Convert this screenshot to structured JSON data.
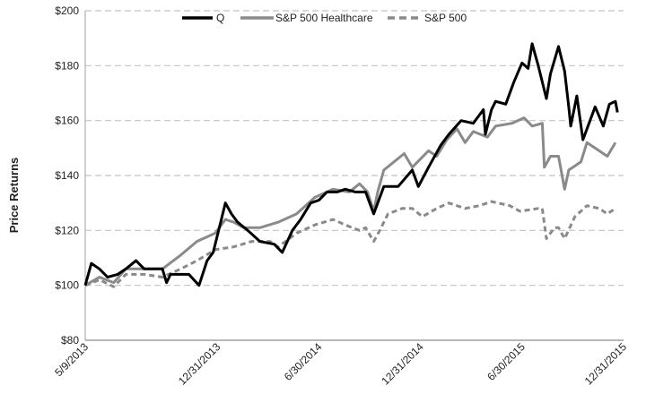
{
  "chart_data": {
    "type": "line",
    "title": "",
    "xlabel": "",
    "ylabel": "Price Returns",
    "ylim": [
      80,
      200
    ],
    "xlim": [
      2013.35,
      2016.0
    ],
    "grid": true,
    "legend_position": "top-center",
    "yticks": [
      80,
      100,
      120,
      140,
      160,
      180,
      200
    ],
    "ytick_labels": [
      "$80",
      "$100",
      "$120",
      "$140",
      "$160",
      "$180",
      "$200"
    ],
    "xticks": [
      2013.35,
      2014.0,
      2014.5,
      2015.0,
      2015.5,
      2016.0
    ],
    "xtick_labels": [
      "5/9/2013",
      "12/31/2013",
      "6/30/2014",
      "12/31/2014",
      "6/30/2015",
      "12/31/2015"
    ],
    "x_units": "decimal year",
    "series": [
      {
        "name": "Q",
        "color": "#000000",
        "style": "solid",
        "points": [
          [
            2013.35,
            100
          ],
          [
            2013.38,
            108
          ],
          [
            2013.42,
            106
          ],
          [
            2013.46,
            103
          ],
          [
            2013.51,
            104
          ],
          [
            2013.55,
            106
          ],
          [
            2013.6,
            109
          ],
          [
            2013.64,
            106
          ],
          [
            2013.68,
            106
          ],
          [
            2013.73,
            106
          ],
          [
            2013.75,
            101
          ],
          [
            2013.77,
            104
          ],
          [
            2013.82,
            104
          ],
          [
            2013.86,
            104
          ],
          [
            2013.91,
            100
          ],
          [
            2013.95,
            109
          ],
          [
            2013.98,
            112
          ],
          [
            2014.02,
            124
          ],
          [
            2014.04,
            130
          ],
          [
            2014.07,
            126
          ],
          [
            2014.1,
            123
          ],
          [
            2014.15,
            120
          ],
          [
            2014.21,
            116
          ],
          [
            2014.28,
            115
          ],
          [
            2014.32,
            112
          ],
          [
            2014.37,
            120
          ],
          [
            2014.41,
            124
          ],
          [
            2014.46,
            130
          ],
          [
            2014.5,
            131
          ],
          [
            2014.54,
            134
          ],
          [
            2014.59,
            134
          ],
          [
            2014.63,
            135
          ],
          [
            2014.68,
            134
          ],
          [
            2014.73,
            134
          ],
          [
            2014.77,
            126
          ],
          [
            2014.82,
            136
          ],
          [
            2014.89,
            136
          ],
          [
            2014.96,
            142
          ],
          [
            2014.99,
            136
          ],
          [
            2015.04,
            143
          ],
          [
            2015.1,
            151
          ],
          [
            2015.14,
            155
          ],
          [
            2015.2,
            160
          ],
          [
            2015.26,
            159
          ],
          [
            2015.31,
            164
          ],
          [
            2015.32,
            155
          ],
          [
            2015.35,
            164
          ],
          [
            2015.37,
            167
          ],
          [
            2015.42,
            166
          ],
          [
            2015.46,
            174
          ],
          [
            2015.5,
            181
          ],
          [
            2015.53,
            179
          ],
          [
            2015.55,
            188
          ],
          [
            2015.58,
            180
          ],
          [
            2015.62,
            168
          ],
          [
            2015.64,
            177
          ],
          [
            2015.68,
            187
          ],
          [
            2015.71,
            178
          ],
          [
            2015.73,
            165
          ],
          [
            2015.74,
            158
          ],
          [
            2015.77,
            169
          ],
          [
            2015.8,
            153
          ],
          [
            2015.83,
            159
          ],
          [
            2015.86,
            165
          ],
          [
            2015.9,
            158
          ],
          [
            2015.93,
            166
          ],
          [
            2015.96,
            167
          ],
          [
            2015.97,
            163
          ]
        ]
      },
      {
        "name": "S&P 500 Healthcare",
        "color": "#8a8a8a",
        "style": "solid",
        "points": [
          [
            2013.35,
            100
          ],
          [
            2013.42,
            103
          ],
          [
            2013.49,
            101
          ],
          [
            2013.55,
            106
          ],
          [
            2013.64,
            106
          ],
          [
            2013.73,
            106
          ],
          [
            2013.82,
            111
          ],
          [
            2013.9,
            116
          ],
          [
            2013.99,
            119
          ],
          [
            2014.04,
            124
          ],
          [
            2014.08,
            123
          ],
          [
            2014.13,
            121
          ],
          [
            2014.21,
            121
          ],
          [
            2014.3,
            123
          ],
          [
            2014.39,
            126
          ],
          [
            2014.48,
            132
          ],
          [
            2014.57,
            135
          ],
          [
            2014.65,
            134
          ],
          [
            2014.7,
            137
          ],
          [
            2014.74,
            134
          ],
          [
            2014.77,
            127
          ],
          [
            2014.79,
            134
          ],
          [
            2014.82,
            142
          ],
          [
            2014.92,
            148
          ],
          [
            2014.96,
            143
          ],
          [
            2015.04,
            149
          ],
          [
            2015.08,
            147
          ],
          [
            2015.13,
            153
          ],
          [
            2015.18,
            157
          ],
          [
            2015.22,
            152
          ],
          [
            2015.26,
            156
          ],
          [
            2015.33,
            154
          ],
          [
            2015.37,
            158
          ],
          [
            2015.45,
            159
          ],
          [
            2015.51,
            161
          ],
          [
            2015.55,
            158
          ],
          [
            2015.6,
            159
          ],
          [
            2015.61,
            143
          ],
          [
            2015.64,
            147
          ],
          [
            2015.68,
            147
          ],
          [
            2015.71,
            135
          ],
          [
            2015.73,
            142
          ],
          [
            2015.79,
            145
          ],
          [
            2015.82,
            152
          ],
          [
            2015.88,
            149
          ],
          [
            2015.92,
            147
          ],
          [
            2015.96,
            152
          ]
        ]
      },
      {
        "name": "S&P 500",
        "color": "#8a8a8a",
        "style": "dashed",
        "points": [
          [
            2013.35,
            100
          ],
          [
            2013.42,
            102
          ],
          [
            2013.49,
            99.5
          ],
          [
            2013.55,
            104
          ],
          [
            2013.64,
            104
          ],
          [
            2013.73,
            103
          ],
          [
            2013.82,
            106
          ],
          [
            2013.9,
            109
          ],
          [
            2013.99,
            113
          ],
          [
            2014.08,
            114
          ],
          [
            2014.17,
            116
          ],
          [
            2014.26,
            116
          ],
          [
            2014.3,
            114
          ],
          [
            2014.39,
            119
          ],
          [
            2014.48,
            122
          ],
          [
            2014.57,
            124
          ],
          [
            2014.63,
            122
          ],
          [
            2014.7,
            120
          ],
          [
            2014.73,
            121
          ],
          [
            2014.77,
            116
          ],
          [
            2014.8,
            120
          ],
          [
            2014.84,
            126
          ],
          [
            2014.91,
            128
          ],
          [
            2014.96,
            128
          ],
          [
            2015.01,
            125
          ],
          [
            2015.08,
            128
          ],
          [
            2015.14,
            130
          ],
          [
            2015.22,
            128
          ],
          [
            2015.29,
            129
          ],
          [
            2015.35,
            130.5
          ],
          [
            2015.44,
            129
          ],
          [
            2015.49,
            127
          ],
          [
            2015.58,
            128
          ],
          [
            2015.6,
            128
          ],
          [
            2015.62,
            117
          ],
          [
            2015.66,
            121
          ],
          [
            2015.68,
            121
          ],
          [
            2015.71,
            117
          ],
          [
            2015.76,
            125
          ],
          [
            2015.82,
            129
          ],
          [
            2015.88,
            128
          ],
          [
            2015.92,
            126
          ],
          [
            2015.96,
            128
          ]
        ]
      }
    ]
  }
}
